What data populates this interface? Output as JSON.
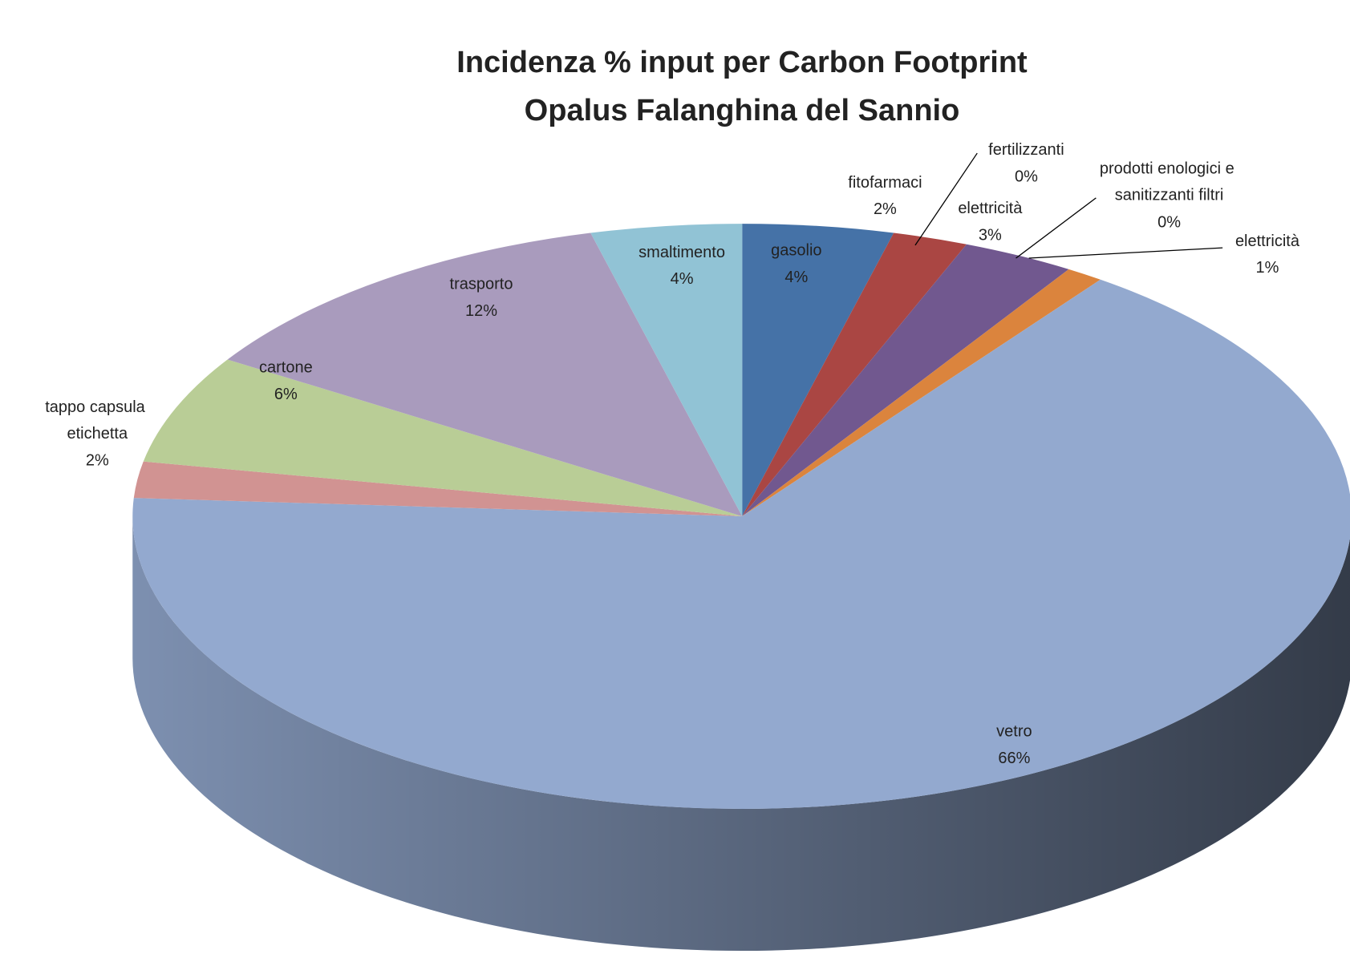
{
  "chart_data": {
    "type": "pie3d",
    "title": "Incidenza % input per Carbon Footprint",
    "subtitle": "Opalus Falanghina del  Sannio",
    "categories": [
      "gasolio",
      "fitofarmaci",
      "fertilizzanti",
      "elettricità",
      "prodotti enologici e sanitizzanti filtri",
      "elettricità",
      "vetro",
      "tappo capsula etichetta",
      "cartone",
      "trasporto",
      "smaltimento"
    ],
    "values": [
      4,
      2,
      0,
      3,
      0,
      1,
      66,
      2,
      6,
      12,
      4
    ],
    "value_labels": [
      "4%",
      "2%",
      "0%",
      "3%",
      "0%",
      "1%",
      "66%",
      "2%",
      "6%",
      "12%",
      "4%"
    ],
    "colors": [
      "#4572a7",
      "#aa4643",
      "#89a54e",
      "#71588f",
      "#4198af",
      "#db843d",
      "#93a9cf",
      "#d19392",
      "#b9cd96",
      "#a99bbd",
      "#91c3d5"
    ]
  }
}
